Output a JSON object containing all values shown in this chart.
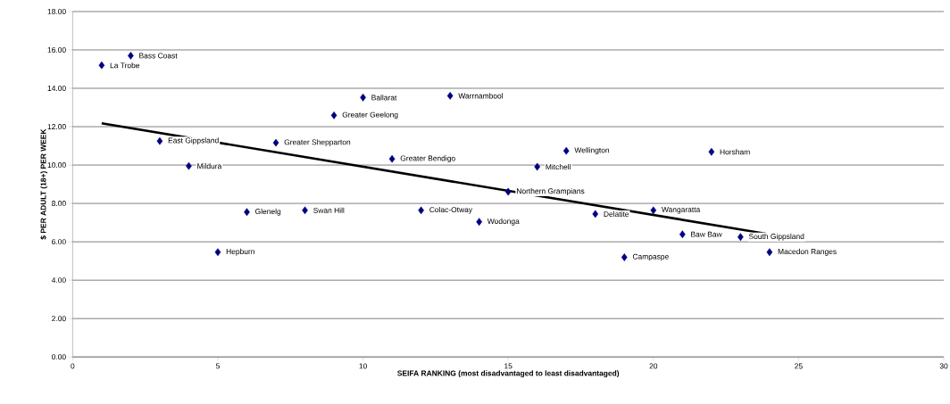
{
  "chart_data": {
    "type": "scatter",
    "xlabel": "SEIFA RANKING (most disadvantaged to least disadvantaged)",
    "ylabel": "$ PER ADULT (18+) PER WEEK",
    "xlim": [
      0,
      30
    ],
    "xticks": [
      0,
      5,
      10,
      15,
      20,
      25,
      30
    ],
    "ylim": [
      0,
      18
    ],
    "yticks": [
      {
        "value": 0,
        "label": "0.00"
      },
      {
        "value": 2,
        "label": "2.00"
      },
      {
        "value": 4,
        "label": "4.00"
      },
      {
        "value": 6,
        "label": "6.00"
      },
      {
        "value": 8,
        "label": "8.00"
      },
      {
        "value": 10,
        "label": "10.00"
      },
      {
        "value": 12,
        "label": "12.00"
      },
      {
        "value": 14,
        "label": "14.00"
      },
      {
        "value": 16,
        "label": "16.00"
      },
      {
        "value": 18,
        "label": "18.00"
      }
    ],
    "grid": "y",
    "series": [
      {
        "color": "#000080",
        "marker": "diamond",
        "x": [
          1,
          2,
          3,
          4,
          5,
          6,
          7,
          8,
          9,
          10,
          11,
          12,
          13,
          14,
          15,
          16,
          17,
          18,
          19,
          20,
          21,
          22,
          23,
          24
        ],
        "values": [
          15.2,
          15.7,
          11.25,
          9.95,
          5.46,
          7.55,
          11.16,
          7.64,
          12.59,
          13.52,
          10.32,
          7.64,
          13.61,
          7.04,
          8.61,
          9.91,
          10.74,
          7.45,
          5.19,
          7.64,
          6.39,
          10.69,
          6.25,
          5.46
        ]
      },
      {
        "type": "line",
        "color": "#000000",
        "marker": "none",
        "line_style": "solid",
        "x": [
          1,
          24
        ],
        "values": [
          12.18,
          6.39
        ]
      }
    ],
    "annotations": [
      {
        "text": "La Trobe",
        "x": 1,
        "y": 15.2
      },
      {
        "text": "Bass Coast",
        "x": 2,
        "y": 15.7
      },
      {
        "text": "East Gippsland",
        "x": 3,
        "y": 11.25
      },
      {
        "text": "Mildura",
        "x": 4,
        "y": 9.95
      },
      {
        "text": "Hepburn",
        "x": 5,
        "y": 5.46
      },
      {
        "text": "Glenelg",
        "x": 6,
        "y": 7.55
      },
      {
        "text": "Greater Shepparton",
        "x": 7,
        "y": 11.16
      },
      {
        "text": "Swan Hill",
        "x": 8,
        "y": 7.64
      },
      {
        "text": "Greater Geelong",
        "x": 9,
        "y": 12.59
      },
      {
        "text": "Ballarat",
        "x": 10,
        "y": 13.52
      },
      {
        "text": "Greater Bendigo",
        "x": 11,
        "y": 10.32
      },
      {
        "text": "Colac-Otway",
        "x": 12,
        "y": 7.64
      },
      {
        "text": "Warrnambool",
        "x": 13,
        "y": 13.61
      },
      {
        "text": "Wodonga",
        "x": 14,
        "y": 7.04
      },
      {
        "text": "Northern Grampians",
        "x": 15,
        "y": 8.61
      },
      {
        "text": "Mitchell",
        "x": 16,
        "y": 9.91
      },
      {
        "text": "Wellington",
        "x": 17,
        "y": 10.74
      },
      {
        "text": "Delatite",
        "x": 18,
        "y": 7.45
      },
      {
        "text": "Campaspe",
        "x": 19,
        "y": 5.19
      },
      {
        "text": "Wangaratta",
        "x": 20,
        "y": 7.64
      },
      {
        "text": "Baw Baw",
        "x": 21,
        "y": 6.39
      },
      {
        "text": "Horsham",
        "x": 22,
        "y": 10.69
      },
      {
        "text": "South Gippsland",
        "x": 23,
        "y": 6.25
      },
      {
        "text": "Macedon Ranges",
        "x": 24,
        "y": 5.46
      }
    ]
  }
}
